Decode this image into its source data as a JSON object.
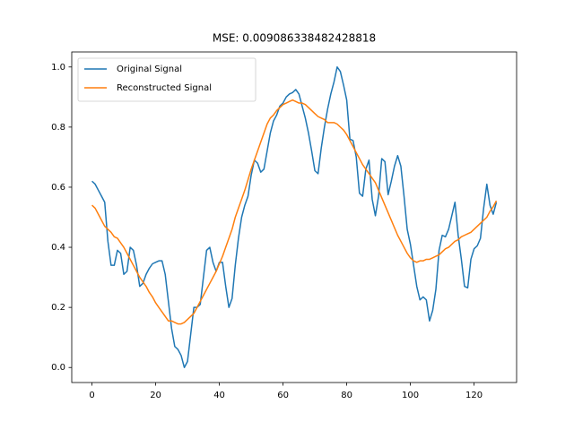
{
  "chart_data": {
    "type": "line",
    "title": "MSE: 0.009086338482428818",
    "x": [
      0,
      1,
      2,
      3,
      4,
      5,
      6,
      7,
      8,
      9,
      10,
      11,
      12,
      13,
      14,
      15,
      16,
      17,
      18,
      19,
      20,
      21,
      22,
      23,
      24,
      25,
      26,
      27,
      28,
      29,
      30,
      31,
      32,
      33,
      34,
      35,
      36,
      37,
      38,
      39,
      40,
      41,
      42,
      43,
      44,
      45,
      46,
      47,
      48,
      49,
      50,
      51,
      52,
      53,
      54,
      55,
      56,
      57,
      58,
      59,
      60,
      61,
      62,
      63,
      64,
      65,
      66,
      67,
      68,
      69,
      70,
      71,
      72,
      73,
      74,
      75,
      76,
      77,
      78,
      79,
      80,
      81,
      82,
      83,
      84,
      85,
      86,
      87,
      88,
      89,
      90,
      91,
      92,
      93,
      94,
      95,
      96,
      97,
      98,
      99,
      100,
      101,
      102,
      103,
      104,
      105,
      106,
      107,
      108,
      109,
      110,
      111,
      112,
      113,
      114,
      115,
      116,
      117,
      118,
      119,
      120,
      121,
      122,
      123,
      124,
      125,
      126,
      127
    ],
    "series": [
      {
        "name": "Original Signal",
        "color": "#1f77b4",
        "values": [
          0.62,
          0.61,
          0.59,
          0.57,
          0.55,
          0.42,
          0.34,
          0.34,
          0.39,
          0.38,
          0.31,
          0.32,
          0.4,
          0.39,
          0.34,
          0.27,
          0.28,
          0.31,
          0.33,
          0.345,
          0.35,
          0.355,
          0.355,
          0.31,
          0.22,
          0.13,
          0.07,
          0.06,
          0.04,
          0.0,
          0.02,
          0.11,
          0.2,
          0.2,
          0.21,
          0.3,
          0.39,
          0.4,
          0.35,
          0.32,
          0.35,
          0.35,
          0.27,
          0.2,
          0.23,
          0.34,
          0.43,
          0.5,
          0.54,
          0.57,
          0.64,
          0.69,
          0.68,
          0.65,
          0.66,
          0.72,
          0.78,
          0.82,
          0.84,
          0.87,
          0.88,
          0.9,
          0.91,
          0.915,
          0.925,
          0.91,
          0.87,
          0.83,
          0.78,
          0.72,
          0.655,
          0.645,
          0.73,
          0.8,
          0.86,
          0.91,
          0.95,
          1.0,
          0.985,
          0.94,
          0.89,
          0.76,
          0.755,
          0.7,
          0.58,
          0.57,
          0.66,
          0.69,
          0.56,
          0.505,
          0.57,
          0.695,
          0.685,
          0.575,
          0.62,
          0.67,
          0.705,
          0.67,
          0.57,
          0.46,
          0.41,
          0.34,
          0.27,
          0.225,
          0.235,
          0.225,
          0.155,
          0.19,
          0.26,
          0.39,
          0.44,
          0.435,
          0.46,
          0.505,
          0.55,
          0.44,
          0.36,
          0.27,
          0.265,
          0.36,
          0.395,
          0.405,
          0.43,
          0.53,
          0.61,
          0.54,
          0.51,
          0.55
        ]
      },
      {
        "name": "Reconstructed Signal",
        "color": "#ff7f0e",
        "values": [
          0.54,
          0.53,
          0.51,
          0.49,
          0.47,
          0.46,
          0.45,
          0.435,
          0.43,
          0.415,
          0.4,
          0.38,
          0.36,
          0.34,
          0.32,
          0.3,
          0.285,
          0.27,
          0.25,
          0.235,
          0.215,
          0.2,
          0.185,
          0.17,
          0.155,
          0.155,
          0.15,
          0.145,
          0.145,
          0.15,
          0.16,
          0.17,
          0.18,
          0.2,
          0.22,
          0.24,
          0.26,
          0.28,
          0.3,
          0.32,
          0.345,
          0.37,
          0.4,
          0.43,
          0.46,
          0.5,
          0.53,
          0.56,
          0.59,
          0.625,
          0.66,
          0.69,
          0.72,
          0.75,
          0.78,
          0.81,
          0.83,
          0.84,
          0.855,
          0.865,
          0.875,
          0.88,
          0.885,
          0.89,
          0.885,
          0.88,
          0.88,
          0.875,
          0.865,
          0.855,
          0.845,
          0.835,
          0.83,
          0.825,
          0.815,
          0.815,
          0.815,
          0.81,
          0.8,
          0.79,
          0.775,
          0.755,
          0.735,
          0.715,
          0.695,
          0.675,
          0.66,
          0.645,
          0.63,
          0.615,
          0.59,
          0.565,
          0.54,
          0.515,
          0.49,
          0.465,
          0.44,
          0.42,
          0.4,
          0.38,
          0.365,
          0.355,
          0.35,
          0.355,
          0.355,
          0.36,
          0.36,
          0.365,
          0.37,
          0.375,
          0.385,
          0.395,
          0.4,
          0.41,
          0.42,
          0.425,
          0.435,
          0.44,
          0.445,
          0.45,
          0.46,
          0.47,
          0.48,
          0.49,
          0.5,
          0.52,
          0.535,
          0.555
        ]
      }
    ],
    "xlim": [
      -6.35,
      133.35
    ],
    "ylim": [
      -0.05,
      1.05
    ],
    "xticks": [
      0,
      20,
      40,
      60,
      80,
      100,
      120
    ],
    "yticks": [
      {
        "value": 0,
        "label": "0.0"
      },
      0.2,
      0.4,
      0.6,
      0.8,
      {
        "value": 1,
        "label": "1.0"
      }
    ],
    "legend": "upper left"
  }
}
